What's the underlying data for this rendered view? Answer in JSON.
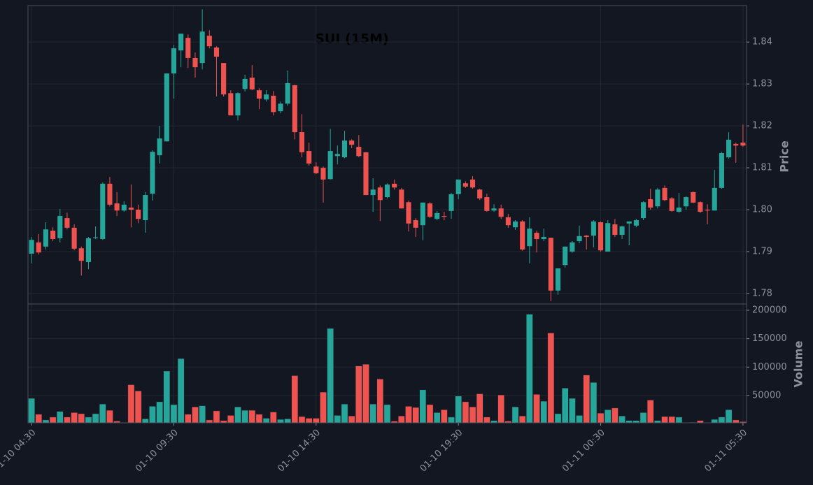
{
  "chart_data": {
    "type": "candlestick",
    "title": "SUI (15M)",
    "ylabel": "Price",
    "volume_label": "Volume",
    "up_color": "#26a69a",
    "down_color": "#ef5350",
    "grid": true,
    "xlim": [
      -0.5,
      100.5
    ],
    "xticks": [
      {
        "value": 0,
        "label": "01-10 04:30"
      },
      {
        "value": 20,
        "label": "01-10 09:30"
      },
      {
        "value": 40,
        "label": "01-10 14:30"
      },
      {
        "value": 60,
        "label": "01-10 19:30"
      },
      {
        "value": 80,
        "label": "01-11 00:30"
      },
      {
        "value": 100,
        "label": "01-11 05:30"
      }
    ],
    "ylim": [
      1.7775,
      1.8487
    ],
    "yticks": [
      1.78,
      1.79,
      {
        "value": 1.8,
        "label": "1.80"
      },
      1.81,
      1.82,
      1.83,
      1.84
    ],
    "volume_ylim": [
      2000,
      211000
    ],
    "volume_yticks": [
      50000,
      100000,
      150000,
      200000
    ],
    "open": [
      1.7895,
      1.7922,
      1.7912,
      1.795,
      1.7932,
      1.798,
      1.7957,
      1.7908,
      1.7875,
      1.7932,
      1.793,
      1.8062,
      1.8015,
      1.7998,
      1.8005,
      1.8,
      1.7975,
      1.8038,
      1.813,
      1.8163,
      1.8325,
      1.838,
      1.841,
      1.8362,
      1.835,
      1.8415,
      1.8387,
      1.835,
      1.8278,
      1.8225,
      1.8288,
      1.8315,
      1.8285,
      1.8263,
      1.8272,
      1.8235,
      1.8253,
      1.8297,
      1.8185,
      1.814,
      1.8103,
      1.81,
      1.8073,
      1.8128,
      1.8125,
      1.8165,
      1.815,
      1.8137,
      1.8035,
      1.8053,
      1.803,
      1.8062,
      1.8048,
      1.8018,
      1.7975,
      1.7963,
      1.8015,
      1.7978,
      1.7985,
      1.7997,
      1.8037,
      1.8063,
      1.8072,
      1.8048,
      1.803,
      1.7998,
      1.8003,
      1.7982,
      1.7958,
      1.7972,
      1.7913,
      1.7945,
      1.793,
      1.7933,
      1.7807,
      1.7868,
      1.79,
      1.7925,
      1.7938,
      1.7938,
      1.797,
      1.79,
      1.7965,
      1.794,
      1.7967,
      1.7962,
      1.798,
      1.8025,
      1.8008,
      1.8052,
      1.8027,
      1.7995,
      1.8008,
      1.8042,
      1.8018,
      1.8,
      1.7998,
      1.8052,
      1.8125,
      1.8157,
      1.816
    ],
    "high": [
      1.7935,
      1.7942,
      1.797,
      1.7958,
      1.8002,
      1.7993,
      1.7965,
      1.7912,
      1.7935,
      1.796,
      1.8065,
      1.8078,
      1.8042,
      1.802,
      1.806,
      1.8012,
      1.8042,
      1.8142,
      1.82,
      1.8325,
      1.8393,
      1.842,
      1.8418,
      1.8375,
      1.8478,
      1.8428,
      1.839,
      1.835,
      1.8285,
      1.828,
      1.8322,
      1.8345,
      1.829,
      1.8285,
      1.8283,
      1.8258,
      1.8332,
      1.8298,
      1.8228,
      1.816,
      1.8113,
      1.8103,
      1.8193,
      1.8153,
      1.8188,
      1.8168,
      1.8178,
      1.8137,
      1.8075,
      1.8058,
      1.8063,
      1.8072,
      1.8052,
      1.8022,
      1.798,
      1.8017,
      1.8018,
      1.7997,
      1.7995,
      1.804,
      1.8072,
      1.8068,
      1.808,
      1.805,
      1.8038,
      1.8013,
      1.8012,
      1.799,
      1.7975,
      1.7975,
      1.7982,
      1.795,
      1.7955,
      1.7933,
      1.786,
      1.7912,
      1.7925,
      1.7962,
      1.794,
      1.7975,
      1.7972,
      1.7975,
      1.7978,
      1.7962,
      1.7972,
      1.7978,
      1.802,
      1.805,
      1.8052,
      1.8058,
      1.803,
      1.804,
      1.8032,
      1.8043,
      1.802,
      1.8013,
      1.8095,
      1.8138,
      1.8185,
      1.816,
      1.8203
    ],
    "low": [
      1.7872,
      1.7893,
      1.7905,
      1.7925,
      1.7922,
      1.7953,
      1.7903,
      1.7843,
      1.7858,
      1.793,
      1.7928,
      1.8008,
      1.7985,
      1.7995,
      1.7958,
      1.7968,
      1.7945,
      1.8022,
      1.811,
      1.8163,
      1.8265,
      1.834,
      1.8338,
      1.8315,
      1.8335,
      1.8385,
      1.827,
      1.827,
      1.8225,
      1.8213,
      1.8282,
      1.8285,
      1.824,
      1.8258,
      1.8225,
      1.823,
      1.8248,
      1.8168,
      1.8125,
      1.8105,
      1.8085,
      1.8017,
      1.8072,
      1.8108,
      1.8123,
      1.8147,
      1.8125,
      1.8035,
      1.7995,
      1.7973,
      1.8027,
      1.8048,
      1.8003,
      1.7948,
      1.7935,
      1.7927,
      1.798,
      1.7975,
      1.7975,
      1.7978,
      1.8025,
      1.8052,
      1.805,
      1.8023,
      1.7995,
      1.7995,
      1.7978,
      1.7957,
      1.7952,
      1.7902,
      1.7872,
      1.7898,
      1.7925,
      1.7782,
      1.7797,
      1.7862,
      1.7897,
      1.792,
      1.7905,
      1.791,
      1.79,
      1.79,
      1.7935,
      1.793,
      1.7915,
      1.7958,
      1.7975,
      1.8,
      1.8003,
      1.802,
      1.7995,
      1.7993,
      1.8,
      1.8015,
      1.7992,
      1.7965,
      1.7998,
      1.805,
      1.8122,
      1.8112,
      1.815
    ],
    "close": [
      1.7928,
      1.7898,
      1.7953,
      1.793,
      1.7985,
      1.7957,
      1.7907,
      1.7878,
      1.7932,
      1.7934,
      1.8062,
      1.8012,
      1.7998,
      1.8012,
      1.8,
      1.7978,
      1.8035,
      1.8138,
      1.817,
      1.8325,
      1.8385,
      1.842,
      1.8362,
      1.834,
      1.8425,
      1.839,
      1.8365,
      1.8275,
      1.8225,
      1.8278,
      1.8312,
      1.8287,
      1.8265,
      1.8275,
      1.8233,
      1.8253,
      1.8302,
      1.8185,
      1.8137,
      1.811,
      1.8087,
      1.8072,
      1.814,
      1.8133,
      1.8165,
      1.8155,
      1.8128,
      1.8035,
      1.8048,
      1.8023,
      1.806,
      1.8053,
      1.8003,
      1.7967,
      1.7957,
      1.8017,
      1.7983,
      1.7992,
      1.7983,
      1.8037,
      1.8072,
      1.8055,
      1.8053,
      1.8027,
      1.7997,
      1.8003,
      1.7983,
      1.7963,
      1.7972,
      1.7905,
      1.7955,
      1.793,
      1.7935,
      1.7807,
      1.786,
      1.7912,
      1.7922,
      1.7937,
      1.7935,
      1.7972,
      1.7903,
      1.7968,
      1.794,
      1.796,
      1.7972,
      1.7975,
      1.8018,
      1.8005,
      1.8048,
      1.8023,
      1.7997,
      1.8005,
      1.803,
      1.8017,
      1.7995,
      1.7998,
      1.8052,
      1.8135,
      1.8167,
      1.8153,
      1.8153
    ],
    "volume": [
      45000,
      17000,
      7000,
      12000,
      22000,
      12000,
      20000,
      18000,
      12000,
      18000,
      35000,
      24000,
      5000,
      1000,
      69000,
      58000,
      9000,
      31000,
      39000,
      93000,
      34000,
      115000,
      17000,
      30000,
      32000,
      7000,
      23000,
      6000,
      15000,
      30000,
      24000,
      24000,
      17000,
      10000,
      21000,
      8000,
      9000,
      85000,
      13000,
      10000,
      10000,
      56000,
      168000,
      15000,
      35000,
      14000,
      102000,
      105000,
      35000,
      79000,
      34000,
      5000,
      14000,
      31000,
      29000,
      60000,
      34000,
      20000,
      25000,
      12000,
      49000,
      39000,
      30000,
      53000,
      12000,
      6000,
      51000,
      5000,
      30000,
      14000,
      193000,
      52000,
      40000,
      160000,
      18000,
      63000,
      45000,
      15000,
      86000,
      73000,
      19000,
      25000,
      28000,
      14000,
      6000,
      6000,
      20000,
      42000,
      6000,
      13000,
      13000,
      12000,
      2000,
      3000,
      6000,
      2000,
      8000,
      12000,
      25000,
      7000,
      4000
    ]
  }
}
